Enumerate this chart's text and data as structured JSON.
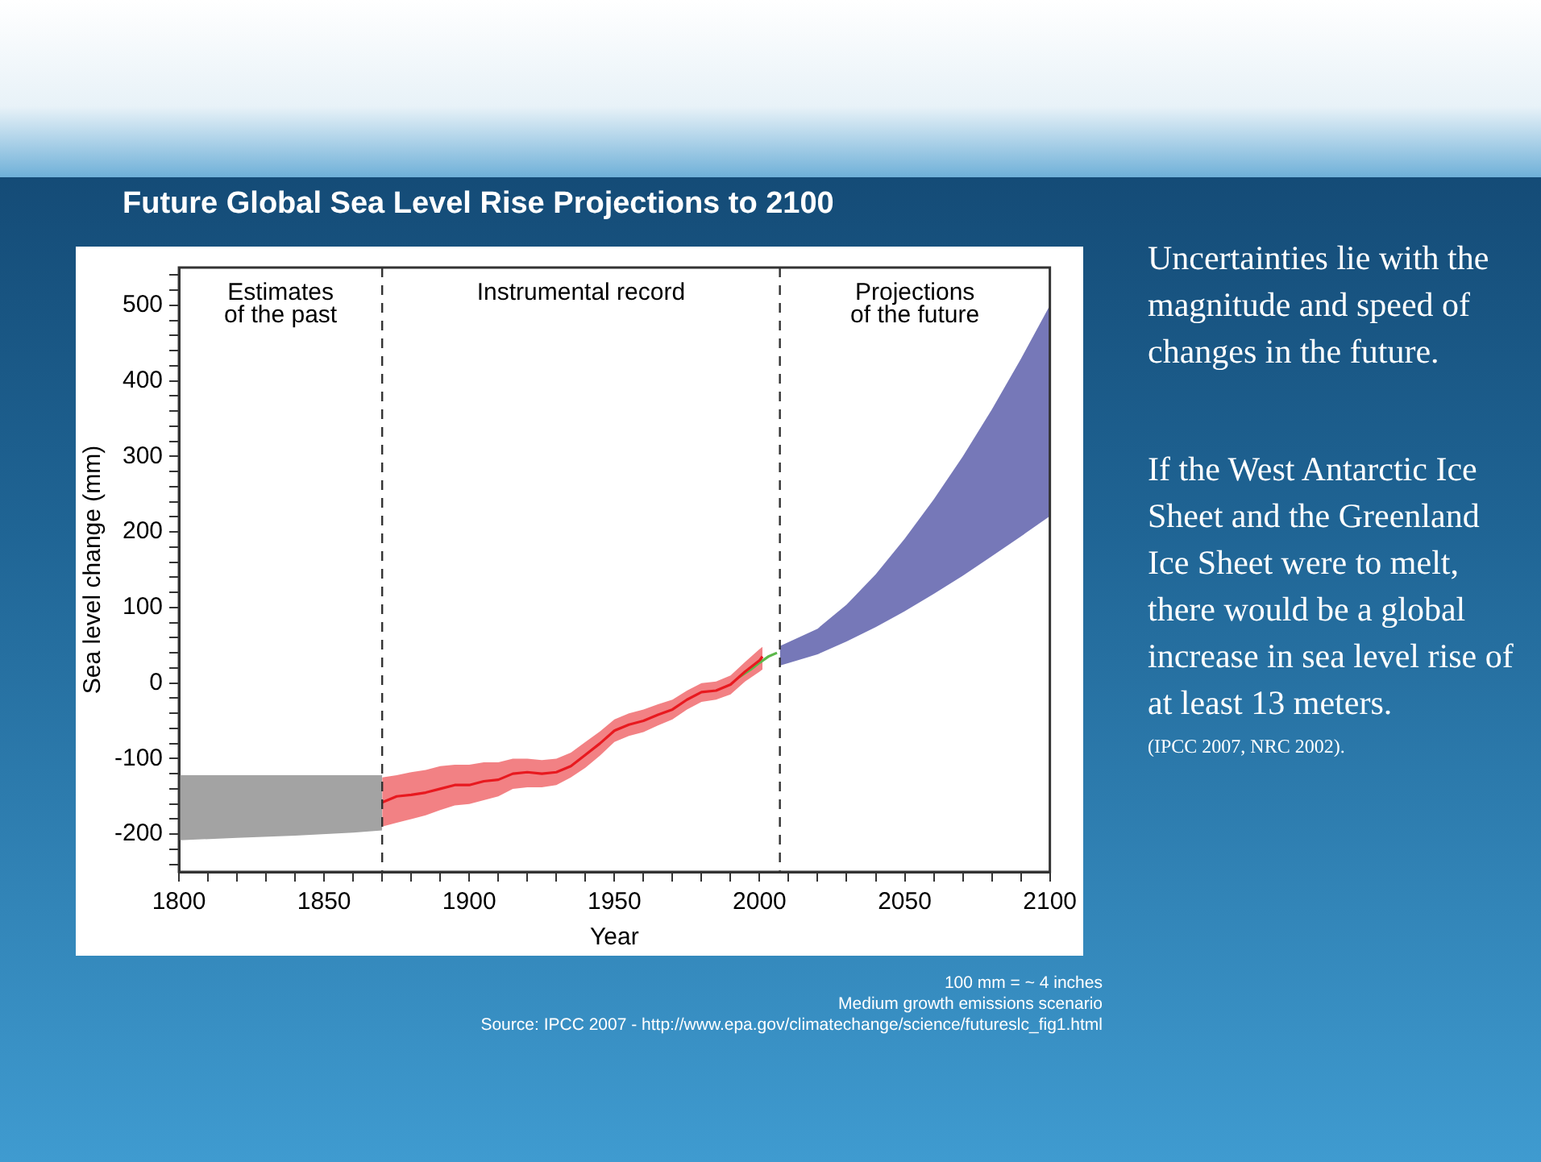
{
  "chart_data": {
    "type": "line",
    "title": "Future Global Sea Level Rise Projections to 2100",
    "xlabel": "Year",
    "ylabel": "Sea level change (mm)",
    "xlim": [
      1800,
      2100
    ],
    "xticks": [
      1800,
      {
        "value": 1810,
        "label": null
      },
      {
        "value": 1820,
        "label": null
      },
      {
        "value": 1830,
        "label": null
      },
      {
        "value": 1840,
        "label": null
      },
      1850,
      {
        "value": 1860,
        "label": null
      },
      {
        "value": 1870,
        "label": null
      },
      {
        "value": 1880,
        "label": null
      },
      {
        "value": 1890,
        "label": null
      },
      1900,
      {
        "value": 1910,
        "label": null
      },
      {
        "value": 1920,
        "label": null
      },
      {
        "value": 1930,
        "label": null
      },
      {
        "value": 1940,
        "label": null
      },
      1950,
      {
        "value": 1960,
        "label": null
      },
      {
        "value": 1970,
        "label": null
      },
      {
        "value": 1980,
        "label": null
      },
      {
        "value": 1990,
        "label": null
      },
      2000,
      {
        "value": 2010,
        "label": null
      },
      {
        "value": 2020,
        "label": null
      },
      {
        "value": 2030,
        "label": null
      },
      {
        "value": 2040,
        "label": null
      },
      2050,
      {
        "value": 2060,
        "label": null
      },
      {
        "value": 2070,
        "label": null
      },
      {
        "value": 2080,
        "label": null
      },
      {
        "value": 2090,
        "label": null
      },
      2100
    ],
    "ylim": [
      -250,
      550
    ],
    "yticks": [
      -200,
      -100,
      0,
      100,
      200,
      300,
      400,
      500,
      {
        "value": -240,
        "label": null
      },
      {
        "value": -220,
        "label": null
      },
      {
        "value": -180,
        "label": null
      },
      {
        "value": -160,
        "label": null
      },
      {
        "value": -140,
        "label": null
      },
      {
        "value": -120,
        "label": null
      },
      {
        "value": -80,
        "label": null
      },
      {
        "value": -60,
        "label": null
      },
      {
        "value": -40,
        "label": null
      },
      {
        "value": -20,
        "label": null
      },
      {
        "value": 20,
        "label": null
      },
      {
        "value": 40,
        "label": null
      },
      {
        "value": 60,
        "label": null
      },
      {
        "value": 80,
        "label": null
      },
      {
        "value": 120,
        "label": null
      },
      {
        "value": 140,
        "label": null
      },
      {
        "value": 160,
        "label": null
      },
      {
        "value": 180,
        "label": null
      },
      {
        "value": 220,
        "label": null
      },
      {
        "value": 240,
        "label": null
      },
      {
        "value": 260,
        "label": null
      },
      {
        "value": 280,
        "label": null
      },
      {
        "value": 320,
        "label": null
      },
      {
        "value": 340,
        "label": null
      },
      {
        "value": 360,
        "label": null
      },
      {
        "value": 380,
        "label": null
      },
      {
        "value": 420,
        "label": null
      },
      {
        "value": 440,
        "label": null
      },
      {
        "value": 460,
        "label": null
      },
      {
        "value": 480,
        "label": null
      },
      {
        "value": 520,
        "label": null
      },
      {
        "value": 540,
        "label": null
      }
    ],
    "series": [
      {
        "type": "line",
        "color": "#a3a3a3",
        "x": [
          1800,
          1820,
          1840,
          1860,
          1870
        ],
        "values": [
          null,
          null,
          null,
          null,
          null
        ],
        "upper": [
          -122,
          -122,
          -122,
          -122,
          -122
        ],
        "lower": [
          -208,
          -205,
          -202,
          -198,
          -195
        ]
      },
      {
        "type": "line",
        "color": "#e8191f",
        "x": [
          1870,
          1875,
          1880,
          1885,
          1890,
          1895,
          1900,
          1905,
          1910,
          1915,
          1920,
          1925,
          1930,
          1935,
          1940,
          1945,
          1950,
          1955,
          1960,
          1965,
          1970,
          1975,
          1980,
          1985,
          1990,
          1995,
          2000,
          2001
        ],
        "values": [
          -158,
          -150,
          -148,
          -145,
          -140,
          -135,
          -135,
          -130,
          -128,
          -120,
          -118,
          -120,
          -118,
          -110,
          -95,
          -80,
          -63,
          -55,
          -50,
          -42,
          -35,
          -22,
          -12,
          -10,
          -2,
          15,
          30,
          35
        ],
        "lower": [
          -190,
          -185,
          -180,
          -175,
          -168,
          -162,
          -160,
          -155,
          -150,
          -140,
          -138,
          -138,
          -135,
          -125,
          -112,
          -96,
          -78,
          -70,
          -65,
          -56,
          -48,
          -35,
          -25,
          -22,
          -15,
          2,
          15,
          18
        ],
        "upper": [
          -125,
          -122,
          -118,
          -115,
          -110,
          -108,
          -108,
          -105,
          -105,
          -100,
          -100,
          -102,
          -100,
          -92,
          -78,
          -64,
          -48,
          -40,
          -35,
          -28,
          -22,
          -10,
          0,
          2,
          10,
          28,
          45,
          48
        ]
      },
      {
        "type": "line",
        "color": "#5cb84a",
        "x": [
          1993,
          1997,
          2000,
          2003,
          2006
        ],
        "values": [
          8,
          18,
          27,
          35,
          40
        ]
      },
      {
        "type": "line",
        "color": "#7678b8",
        "x": [
          2007,
          2020,
          2030,
          2040,
          2050,
          2060,
          2070,
          2080,
          2090,
          2100
        ],
        "values": [
          null,
          null,
          null,
          null,
          null,
          null,
          null,
          null,
          null,
          null
        ],
        "upper": [
          49,
          72,
          104,
          144,
          191,
          243,
          300,
          362,
          429,
          500
        ],
        "lower": [
          23,
          38,
          55,
          74,
          95,
          118,
          142,
          168,
          194,
          221
        ]
      }
    ],
    "ref_lines": [
      {
        "axis": "x",
        "value": 1870,
        "color": "#333333",
        "line_style": "dashed"
      },
      {
        "axis": "x",
        "value": 2007,
        "color": "#333333",
        "line_style": "dashed"
      }
    ],
    "annotations": [
      "Estimates\nof the past",
      "Instrumental record",
      "Projections\nof the future",
      "Uncertainties lie with the magnitude and speed of changes in the future.",
      "If the West Antarctic Ice Sheet and the Greenland Ice Sheet were to melt, there would be a global increase in sea level rise of at least 13 meters.",
      "(IPCC 2007, NRC 2002).",
      "100 mm = ~ 4 inches",
      "Medium growth emissions scenario",
      "Source:  IPCC 2007 - http://www.epa.gov/climatechange/science/futureslc_fig1.html"
    ],
    "marker": "none",
    "legend": false
  }
}
